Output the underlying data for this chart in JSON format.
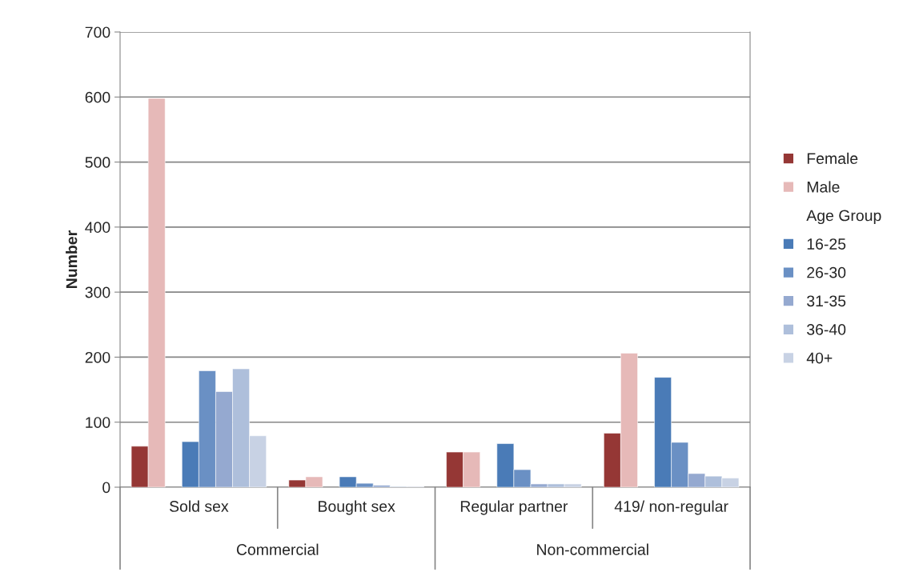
{
  "chart_data": {
    "type": "bar",
    "ylabel": "Number",
    "categories": [
      "Sold sex",
      "Bought sex",
      "Regular partner",
      "419/ non-regular"
    ],
    "series": [
      {
        "name": "Female",
        "color": "#953735",
        "values": [
          63,
          11,
          54,
          83
        ]
      },
      {
        "name": "Male",
        "color": "#e6b9b8",
        "values": [
          598,
          16,
          54,
          206
        ]
      },
      {
        "name": "Age Group",
        "values": [
          null,
          null,
          null,
          null
        ]
      },
      {
        "name": "16-25",
        "color": "#4a7bb7",
        "values": [
          70,
          16,
          67,
          169
        ]
      },
      {
        "name": "26-30",
        "color": "#6a90c4",
        "values": [
          179,
          6,
          27,
          69
        ]
      },
      {
        "name": "31-35",
        "color": "#95a9d0",
        "values": [
          147,
          3,
          5,
          21
        ]
      },
      {
        "name": "36-40",
        "color": "#aebfdb",
        "values": [
          182,
          1,
          5,
          17
        ]
      },
      {
        "name": "40+",
        "color": "#c8d2e4",
        "values": [
          79,
          1,
          5,
          14
        ]
      }
    ],
    "ylim": [
      0,
      700
    ],
    "yticks": [
      0,
      100,
      200,
      300,
      400,
      500,
      600,
      700
    ],
    "grid": "y",
    "legend": "right",
    "annotations": [
      "Commercial",
      "Non-commercial"
    ]
  }
}
